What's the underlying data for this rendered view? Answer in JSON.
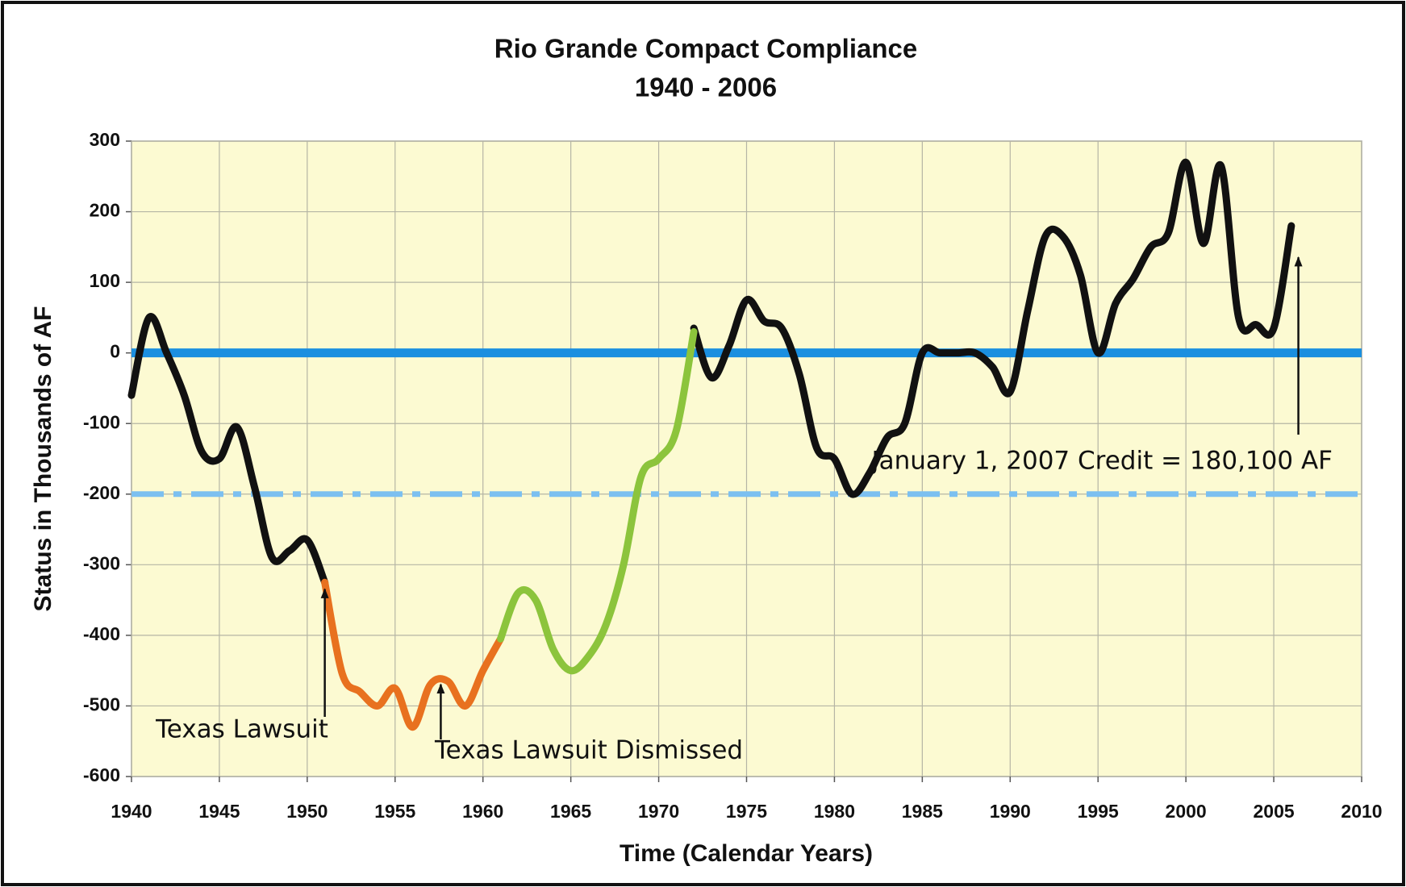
{
  "chart_data": {
    "type": "line",
    "title": [
      "Rio Grande Compact Compliance",
      "1940 - 2006"
    ],
    "x_label": "Time (Calendar Years)",
    "y_label": "Status in Thousands of AF",
    "xlim": [
      1940,
      2010
    ],
    "xticks": [
      1940,
      1945,
      1950,
      1955,
      1960,
      1965,
      1970,
      1975,
      1980,
      1985,
      1990,
      1995,
      2000,
      2005,
      2010
    ],
    "ylim": [
      -600,
      300
    ],
    "yticks": [
      -600,
      -500,
      -400,
      -300,
      -200,
      -100,
      0,
      100,
      200,
      300
    ],
    "grid": true,
    "background": "#fcfad2",
    "x": [
      1940,
      1941,
      1942,
      1943,
      1944,
      1945,
      1946,
      1947,
      1948,
      1949,
      1950,
      1951,
      1952,
      1953,
      1954,
      1955,
      1956,
      1957,
      1958,
      1959,
      1960,
      1961,
      1962,
      1963,
      1964,
      1965,
      1966,
      1967,
      1968,
      1969,
      1970,
      1971,
      1972,
      1973,
      1974,
      1975,
      1976,
      1977,
      1978,
      1979,
      1980,
      1981,
      1982,
      1983,
      1984,
      1985,
      1986,
      1987,
      1988,
      1989,
      1990,
      1991,
      1992,
      1993,
      1994,
      1995,
      1996,
      1997,
      1998,
      1999,
      2000,
      2001,
      2002,
      2003,
      2004,
      2005,
      2006
    ],
    "series": [
      {
        "color": "#111111",
        "values": [
          -60,
          50,
          0,
          -60,
          -140,
          -150,
          -105,
          -190,
          -290,
          -280,
          -265,
          -325,
          null,
          null,
          null,
          null,
          null,
          null,
          null,
          null,
          null,
          null,
          null,
          null,
          null,
          null,
          null,
          null,
          null,
          null,
          null,
          null,
          35,
          -35,
          10,
          75,
          45,
          35,
          -30,
          -135,
          -150,
          -200,
          -170,
          -120,
          -100,
          0,
          0,
          0,
          0,
          -20,
          -55,
          60,
          165,
          165,
          110,
          0,
          70,
          105,
          150,
          170,
          270,
          155,
          265,
          50,
          40,
          35,
          180
        ]
      },
      {
        "color": "#e8711f",
        "values": [
          null,
          null,
          null,
          null,
          null,
          null,
          null,
          null,
          null,
          null,
          null,
          -325,
          -455,
          -480,
          -500,
          -475,
          -530,
          -470,
          -465,
          -500,
          -450,
          -405,
          null,
          null,
          null,
          null,
          null,
          null,
          null,
          null,
          null,
          null,
          null,
          null,
          null,
          null,
          null,
          null,
          null,
          null,
          null,
          null,
          null,
          null,
          null,
          null,
          null,
          null,
          null,
          null,
          null,
          null,
          null,
          null,
          null,
          null,
          null,
          null,
          null,
          null,
          null,
          null,
          null,
          null,
          null,
          null,
          null
        ]
      },
      {
        "color": "#8cc43c",
        "values": [
          null,
          null,
          null,
          null,
          null,
          null,
          null,
          null,
          null,
          null,
          null,
          null,
          null,
          null,
          null,
          null,
          null,
          null,
          null,
          null,
          null,
          -405,
          -340,
          -350,
          -420,
          -450,
          -430,
          -385,
          -300,
          -175,
          -150,
          -110,
          30,
          null,
          null,
          null,
          null,
          null,
          null,
          null,
          null,
          null,
          null,
          null,
          null,
          null,
          null,
          null,
          null,
          null,
          null,
          null,
          null,
          null,
          null,
          null,
          null,
          null,
          null,
          null,
          null,
          null,
          null,
          null,
          null,
          null,
          null
        ]
      }
    ],
    "reference_lines": [
      {
        "value": 0,
        "color": "#1b8fe0",
        "style": "solid"
      },
      {
        "value": -200,
        "color": "#7cc0f0",
        "style": "dashdot"
      }
    ],
    "annotations": [
      {
        "text": "Texas Lawsuit",
        "x": 1951,
        "y": -330
      },
      {
        "text": "Texas Lawsuit Dismissed",
        "x": 1957.6,
        "y": -465
      },
      {
        "text": "January 1, 2007 Credit = 180,100 AF",
        "x": 2006.4,
        "y": 140
      }
    ]
  }
}
